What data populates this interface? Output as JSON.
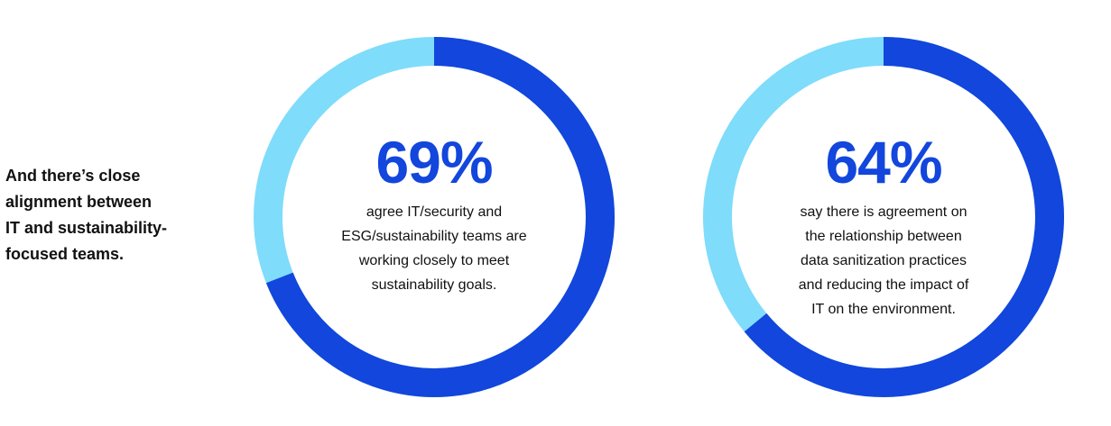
{
  "intro": {
    "lines": [
      "And there’s close",
      "alignment between",
      "IT and sustainability-",
      "focused teams."
    ]
  },
  "colors": {
    "primary": "#1246dc",
    "secondary": "#7fdcfb",
    "text": "#111111"
  },
  "chart_data": [
    {
      "type": "pie",
      "value_label": "69%",
      "values": [
        69,
        31
      ],
      "description_lines": [
        "agree IT/security and",
        "ESG/sustainability teams are",
        "working closely to meet",
        "sustainability goals."
      ]
    },
    {
      "type": "pie",
      "value_label": "64%",
      "values": [
        64,
        36
      ],
      "description_lines": [
        "say there is agreement on",
        "the relationship between",
        "data sanitization practices",
        "and reducing the impact of",
        "IT on the environment."
      ]
    }
  ]
}
